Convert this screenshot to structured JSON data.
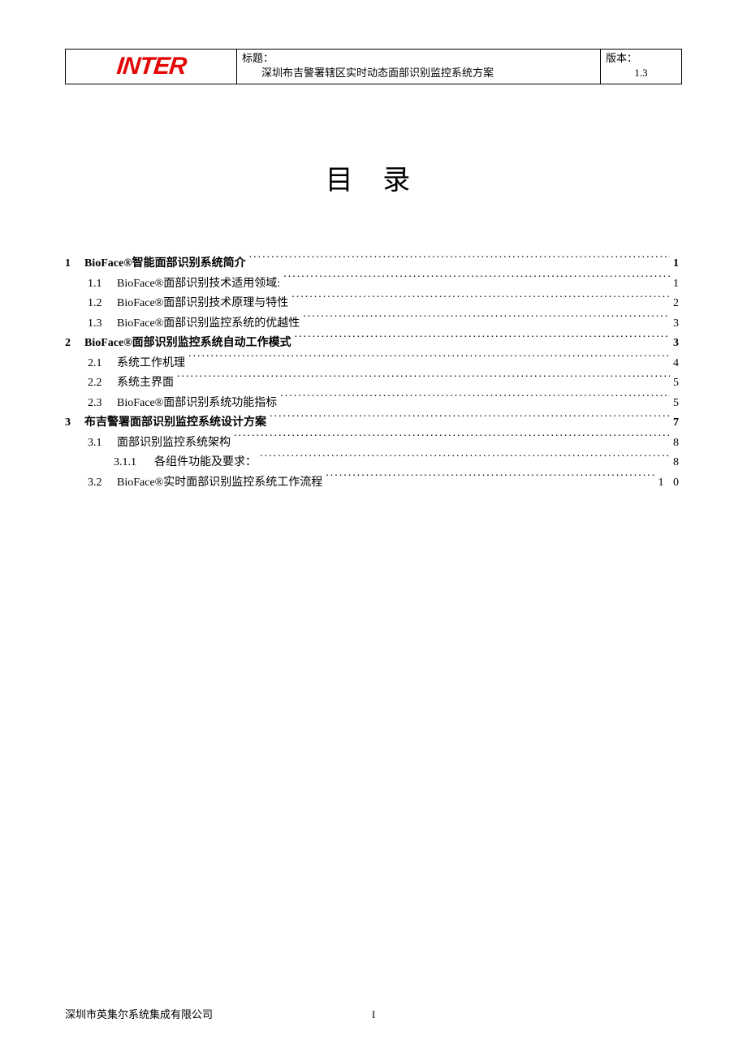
{
  "colors": {
    "logo": "#e30707",
    "text": "#000000",
    "bg": "#ffffff",
    "border": "#000000"
  },
  "fonts": {
    "body": "SimSun",
    "latin": "Times New Roman",
    "logo": "Impact"
  },
  "header": {
    "logo_text": "INTER",
    "title_label": "标题：",
    "title_value": "深圳布吉警署辖区实时动态面部识别监控系统方案",
    "version_label": "版本：",
    "version_value": "1.3"
  },
  "doc_title": "目 录",
  "toc": [
    {
      "level": 1,
      "num": "1",
      "text": "BioFace®智能面部识别系统简介",
      "page": "1"
    },
    {
      "level": 2,
      "num": "1.1",
      "text": "BioFace®面部识别技术适用领域:",
      "page": "1"
    },
    {
      "level": 2,
      "num": "1.2",
      "text": "BioFace®面部识别技术原理与特性",
      "page": "2"
    },
    {
      "level": 2,
      "num": "1.3",
      "text": "BioFace®面部识别监控系统的优越性",
      "page": "3"
    },
    {
      "level": 1,
      "num": "2",
      "text": "BioFace®面部识别监控系统自动工作模式",
      "page": "3"
    },
    {
      "level": 2,
      "num": "2.1",
      "text": "系统工作机理",
      "page": "4"
    },
    {
      "level": 2,
      "num": "2.2",
      "text": "系统主界面",
      "page": "5"
    },
    {
      "level": 2,
      "num": "2.3",
      "text": "BioFace®面部识别系统功能指标",
      "page": "5"
    },
    {
      "level": 1,
      "num": "3",
      "text": "布吉警署面部识别监控系统设计方案",
      "page": "7"
    },
    {
      "level": 2,
      "num": "3.1",
      "text": "面部识别监控系统架构",
      "page": "8"
    },
    {
      "level": 3,
      "num": "3.1.1",
      "text": "各组件功能及要求：",
      "page": "8"
    },
    {
      "level": 2,
      "num": "3.2",
      "text": "BioFace®实时面部识别监控系统工作流程",
      "page": "1 0"
    }
  ],
  "footer": {
    "company": "深圳市英集尔系统集成有限公司",
    "page_number": "I"
  }
}
